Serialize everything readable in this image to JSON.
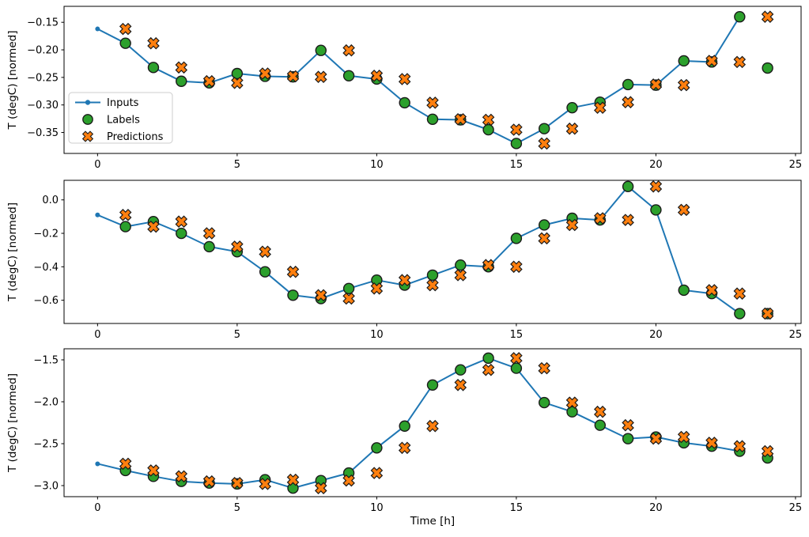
{
  "figure": {
    "xlabel": "Time [h]",
    "ylabel": "T (degC) [normed]",
    "background": "#ffffff",
    "legend": {
      "location": "subplot-1",
      "entries": [
        "Inputs",
        "Labels",
        "Predictions"
      ]
    },
    "colors": {
      "inputs_line": "#1f77b4",
      "labels_marker": "#2ca02c",
      "predictions_marker": "#ff7f0e",
      "marker_edge": "#1a1a1a",
      "axis": "#000000",
      "legend_border": "#cccccc"
    }
  },
  "chart_data": [
    {
      "type": "line",
      "name": "example-window-1",
      "ylabel": "T (degC) [normed]",
      "xlim": [
        -1.2,
        25.2
      ],
      "ylim": [
        -0.388,
        -0.121
      ],
      "grid": false,
      "legend": true,
      "xticks": {
        "values": [
          0,
          5,
          10,
          15,
          20,
          25
        ],
        "labels": [
          "0",
          "5",
          "10",
          "15",
          "20",
          "25"
        ]
      },
      "yticks": {
        "values": [
          -0.15,
          -0.2,
          -0.25,
          -0.3,
          -0.35
        ],
        "labels": [
          "−0.15",
          "−0.20",
          "−0.25",
          "−0.30",
          "−0.35"
        ]
      },
      "series": [
        {
          "name": "Inputs",
          "style": "line-dot",
          "color": "#1f77b4",
          "x": [
            0,
            1,
            2,
            3,
            4,
            5,
            6,
            7,
            8,
            9,
            10,
            11,
            12,
            13,
            14,
            15,
            16,
            17,
            18,
            19,
            20,
            21,
            22,
            23
          ],
          "y": [
            -0.162,
            -0.188,
            -0.232,
            -0.257,
            -0.26,
            -0.243,
            -0.248,
            -0.249,
            -0.201,
            -0.247,
            -0.253,
            -0.296,
            -0.326,
            -0.327,
            -0.345,
            -0.37,
            -0.343,
            -0.305,
            -0.295,
            -0.263,
            -0.264,
            -0.22,
            -0.222,
            -0.14
          ]
        },
        {
          "name": "Labels",
          "style": "circle",
          "color": "#2ca02c",
          "x": [
            1,
            2,
            3,
            4,
            5,
            6,
            7,
            8,
            9,
            10,
            11,
            12,
            13,
            14,
            15,
            16,
            17,
            18,
            19,
            20,
            21,
            22,
            23,
            24
          ],
          "y": [
            -0.188,
            -0.232,
            -0.257,
            -0.26,
            -0.243,
            -0.248,
            -0.249,
            -0.201,
            -0.247,
            -0.253,
            -0.296,
            -0.326,
            -0.327,
            -0.345,
            -0.37,
            -0.343,
            -0.305,
            -0.295,
            -0.263,
            -0.264,
            -0.22,
            -0.222,
            -0.14,
            -0.233
          ]
        },
        {
          "name": "Predictions",
          "style": "x-marker",
          "color": "#ff7f0e",
          "x": [
            1,
            2,
            3,
            4,
            5,
            6,
            7,
            8,
            9,
            10,
            11,
            12,
            13,
            14,
            15,
            16,
            17,
            18,
            19,
            20,
            21,
            22,
            23,
            24
          ],
          "y": [
            -0.162,
            -0.188,
            -0.232,
            -0.257,
            -0.26,
            -0.243,
            -0.248,
            -0.249,
            -0.201,
            -0.247,
            -0.253,
            -0.296,
            -0.326,
            -0.327,
            -0.345,
            -0.37,
            -0.343,
            -0.305,
            -0.295,
            -0.263,
            -0.264,
            -0.22,
            -0.222,
            -0.14
          ]
        }
      ]
    },
    {
      "type": "line",
      "name": "example-window-2",
      "ylabel": "T (degC) [normed]",
      "xlim": [
        -1.2,
        25.2
      ],
      "ylim": [
        -0.739,
        0.117
      ],
      "grid": false,
      "legend": false,
      "xticks": {
        "values": [
          0,
          5,
          10,
          15,
          20,
          25
        ],
        "labels": [
          "0",
          "5",
          "10",
          "15",
          "20",
          "25"
        ]
      },
      "yticks": {
        "values": [
          0.0,
          -0.2,
          -0.4,
          -0.6
        ],
        "labels": [
          "0.0",
          "−0.2",
          "−0.4",
          "−0.6"
        ]
      },
      "series": [
        {
          "name": "Inputs",
          "style": "line-dot",
          "color": "#1f77b4",
          "x": [
            0,
            1,
            2,
            3,
            4,
            5,
            6,
            7,
            8,
            9,
            10,
            11,
            12,
            13,
            14,
            15,
            16,
            17,
            18,
            19,
            20,
            21,
            22,
            23
          ],
          "y": [
            -0.09,
            -0.16,
            -0.13,
            -0.2,
            -0.28,
            -0.31,
            -0.43,
            -0.57,
            -0.59,
            -0.53,
            -0.48,
            -0.51,
            -0.45,
            -0.39,
            -0.4,
            -0.23,
            -0.15,
            -0.11,
            -0.12,
            0.08,
            -0.06,
            -0.54,
            -0.56,
            -0.68
          ]
        },
        {
          "name": "Labels",
          "style": "circle",
          "color": "#2ca02c",
          "x": [
            1,
            2,
            3,
            4,
            5,
            6,
            7,
            8,
            9,
            10,
            11,
            12,
            13,
            14,
            15,
            16,
            17,
            18,
            19,
            20,
            21,
            22,
            23,
            24
          ],
          "y": [
            -0.16,
            -0.13,
            -0.2,
            -0.28,
            -0.31,
            -0.43,
            -0.57,
            -0.59,
            -0.53,
            -0.48,
            -0.51,
            -0.45,
            -0.39,
            -0.4,
            -0.23,
            -0.15,
            -0.11,
            -0.12,
            0.08,
            -0.06,
            -0.54,
            -0.56,
            -0.68,
            -0.68
          ]
        },
        {
          "name": "Predictions",
          "style": "x-marker",
          "color": "#ff7f0e",
          "x": [
            1,
            2,
            3,
            4,
            5,
            6,
            7,
            8,
            9,
            10,
            11,
            12,
            13,
            14,
            15,
            16,
            17,
            18,
            19,
            20,
            21,
            22,
            23,
            24
          ],
          "y": [
            -0.09,
            -0.16,
            -0.13,
            -0.2,
            -0.28,
            -0.31,
            -0.43,
            -0.57,
            -0.59,
            -0.53,
            -0.48,
            -0.51,
            -0.45,
            -0.39,
            -0.4,
            -0.23,
            -0.15,
            -0.11,
            -0.12,
            0.08,
            -0.06,
            -0.54,
            -0.56,
            -0.68
          ]
        }
      ]
    },
    {
      "type": "line",
      "name": "example-window-3",
      "ylabel": "T (degC) [normed]",
      "xlim": [
        -1.2,
        25.2
      ],
      "ylim": [
        -3.132,
        -1.368
      ],
      "grid": false,
      "legend": false,
      "xticks": {
        "values": [
          0,
          5,
          10,
          15,
          20,
          25
        ],
        "labels": [
          "0",
          "5",
          "10",
          "15",
          "20",
          "25"
        ]
      },
      "yticks": {
        "values": [
          -1.5,
          -2.0,
          -2.5,
          -3.0
        ],
        "labels": [
          "−1.5",
          "−2.0",
          "−2.5",
          "−3.0"
        ]
      },
      "series": [
        {
          "name": "Inputs",
          "style": "line-dot",
          "color": "#1f77b4",
          "x": [
            0,
            1,
            2,
            3,
            4,
            5,
            6,
            7,
            8,
            9,
            10,
            11,
            12,
            13,
            14,
            15,
            16,
            17,
            18,
            19,
            20,
            21,
            22,
            23
          ],
          "y": [
            -2.74,
            -2.82,
            -2.89,
            -2.95,
            -2.97,
            -2.98,
            -2.93,
            -3.03,
            -2.94,
            -2.85,
            -2.55,
            -2.29,
            -1.8,
            -1.62,
            -1.48,
            -1.6,
            -2.01,
            -2.12,
            -2.28,
            -2.44,
            -2.42,
            -2.49,
            -2.53,
            -2.59
          ]
        },
        {
          "name": "Labels",
          "style": "circle",
          "color": "#2ca02c",
          "x": [
            1,
            2,
            3,
            4,
            5,
            6,
            7,
            8,
            9,
            10,
            11,
            12,
            13,
            14,
            15,
            16,
            17,
            18,
            19,
            20,
            21,
            22,
            23,
            24
          ],
          "y": [
            -2.82,
            -2.89,
            -2.95,
            -2.97,
            -2.98,
            -2.93,
            -3.03,
            -2.94,
            -2.85,
            -2.55,
            -2.29,
            -1.8,
            -1.62,
            -1.48,
            -1.6,
            -2.01,
            -2.12,
            -2.28,
            -2.44,
            -2.42,
            -2.49,
            -2.53,
            -2.59,
            -2.67
          ]
        },
        {
          "name": "Predictions",
          "style": "x-marker",
          "color": "#ff7f0e",
          "x": [
            1,
            2,
            3,
            4,
            5,
            6,
            7,
            8,
            9,
            10,
            11,
            12,
            13,
            14,
            15,
            16,
            17,
            18,
            19,
            20,
            21,
            22,
            23,
            24
          ],
          "y": [
            -2.74,
            -2.82,
            -2.89,
            -2.95,
            -2.97,
            -2.98,
            -2.93,
            -3.03,
            -2.94,
            -2.85,
            -2.55,
            -2.29,
            -1.8,
            -1.62,
            -1.48,
            -1.6,
            -2.01,
            -2.12,
            -2.28,
            -2.44,
            -2.42,
            -2.49,
            -2.53,
            -2.59
          ]
        }
      ]
    }
  ]
}
